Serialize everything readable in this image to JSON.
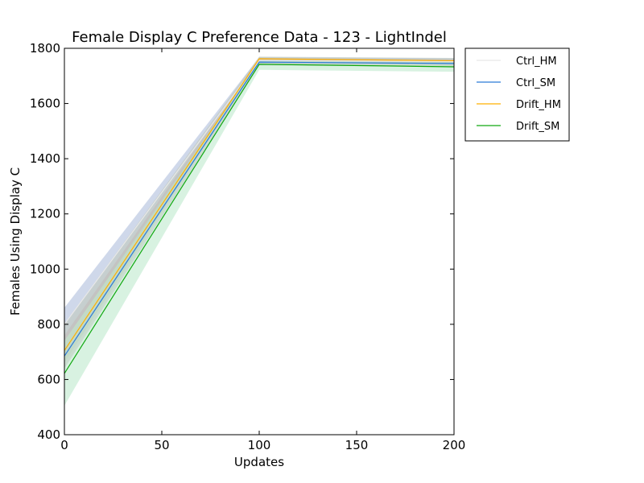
{
  "chart_data": {
    "type": "line",
    "title": "Female Display C Preference Data - 123 - LightIndel",
    "xlabel": "Updates",
    "ylabel": "Females Using Display C",
    "xlim": [
      0,
      200
    ],
    "ylim": [
      400,
      1800
    ],
    "x_ticks": [
      "0",
      "50",
      "100",
      "150",
      "200"
    ],
    "y_ticks": [
      "400",
      "600",
      "800",
      "1000",
      "1200",
      "1400",
      "1600",
      "1800"
    ],
    "x": [
      0,
      100,
      200
    ],
    "legend_position": "outside-right-top",
    "series": [
      {
        "name": "Ctrl_HM",
        "color": "#e8e8e8",
        "band_color": "#a8b8d8",
        "values": [
          800,
          1756,
          1752
        ],
        "lower": [
          740,
          1744,
          1740
        ],
        "upper": [
          860,
          1768,
          1764
        ]
      },
      {
        "name": "Ctrl_SM",
        "color": "#2a7ad8",
        "band_color": "#c8a8b8",
        "values": [
          685,
          1750,
          1745
        ],
        "lower": [
          640,
          1738,
          1733
        ],
        "upper": [
          760,
          1765,
          1760
        ]
      },
      {
        "name": "Drift_HM",
        "color": "#ffb000",
        "band_color": "#c0c8b8",
        "values": [
          705,
          1762,
          1755
        ],
        "lower": [
          660,
          1752,
          1745
        ],
        "upper": [
          800,
          1770,
          1765
        ]
      },
      {
        "name": "Drift_SM",
        "color": "#10a810",
        "band_color": "#b8e8c8",
        "values": [
          622,
          1742,
          1733
        ],
        "lower": [
          505,
          1722,
          1715
        ],
        "upper": [
          740,
          1758,
          1750
        ]
      }
    ]
  }
}
